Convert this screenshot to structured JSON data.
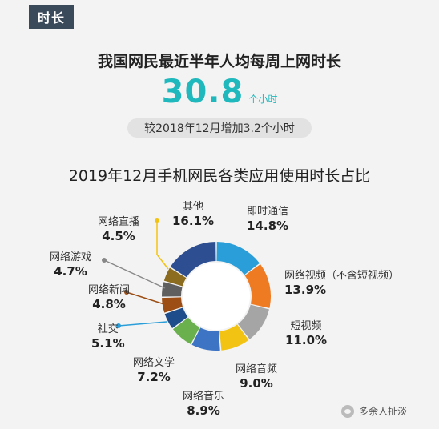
{
  "tag": "时长",
  "headline": "我国网民最近半年人均每周上网时长",
  "big_number": "30.8",
  "big_unit": "个小时",
  "comparison": "较2018年12月增加3.2个小时",
  "footer": "多余人扯淡",
  "colors": {
    "accent": "#1fb8bd",
    "tag_bg": "#3b4a5a"
  },
  "chart_data": {
    "type": "pie",
    "style": "donut",
    "title": "2019年12月手机网民各类应用使用时长占比",
    "series": [
      {
        "name": "即时通信",
        "value": 14.8,
        "label": "14.8%",
        "color": "#2a9ed8"
      },
      {
        "name": "网络视频（不含短视频）",
        "value": 13.9,
        "label": "13.9%",
        "color": "#ee7a22"
      },
      {
        "name": "短视频",
        "value": 11.0,
        "label": "11.0%",
        "color": "#a5a5a5"
      },
      {
        "name": "网络音频",
        "value": 9.0,
        "label": "9.0%",
        "color": "#f3c314"
      },
      {
        "name": "网络音乐",
        "value": 8.9,
        "label": "8.9%",
        "color": "#3d74c4"
      },
      {
        "name": "网络文学",
        "value": 7.2,
        "label": "7.2%",
        "color": "#6ab04c"
      },
      {
        "name": "社交",
        "value": 5.1,
        "label": "5.1%",
        "color": "#1f4c8a"
      },
      {
        "name": "网络新闻",
        "value": 4.8,
        "label": "4.8%",
        "color": "#9c4e14"
      },
      {
        "name": "网络游戏",
        "value": 4.7,
        "label": "4.7%",
        "color": "#5f5f5f"
      },
      {
        "name": "网络直播",
        "value": 4.5,
        "label": "4.5%",
        "color": "#8c6d1f"
      },
      {
        "name": "其他",
        "value": 16.1,
        "label": "16.1%",
        "color": "#2d4f92"
      }
    ]
  }
}
